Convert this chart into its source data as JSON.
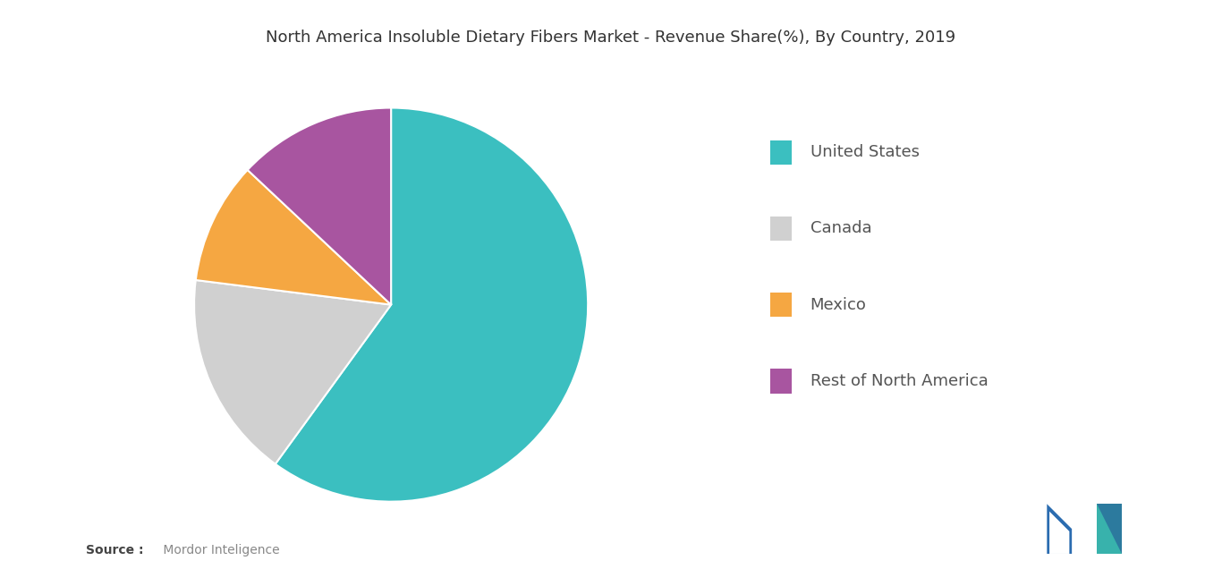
{
  "title": "North America Insoluble Dietary Fibers Market - Revenue Share(%), By Country, 2019",
  "labels": [
    "United States",
    "Canada",
    "Mexico",
    "Rest of North America"
  ],
  "values": [
    60,
    17,
    10,
    13
  ],
  "colors": [
    "#3bbfc0",
    "#d0d0d0",
    "#f5a742",
    "#a855a0"
  ],
  "startangle": 90,
  "background_color": "#ffffff",
  "title_fontsize": 13,
  "legend_fontsize": 13,
  "source_bold": "Source :",
  "source_normal": " Mordor Inteligence",
  "logo_colors": {
    "dark_blue": "#2b6cb0",
    "teal": "#38b2ac",
    "mid_blue": "#2c7a9e"
  }
}
